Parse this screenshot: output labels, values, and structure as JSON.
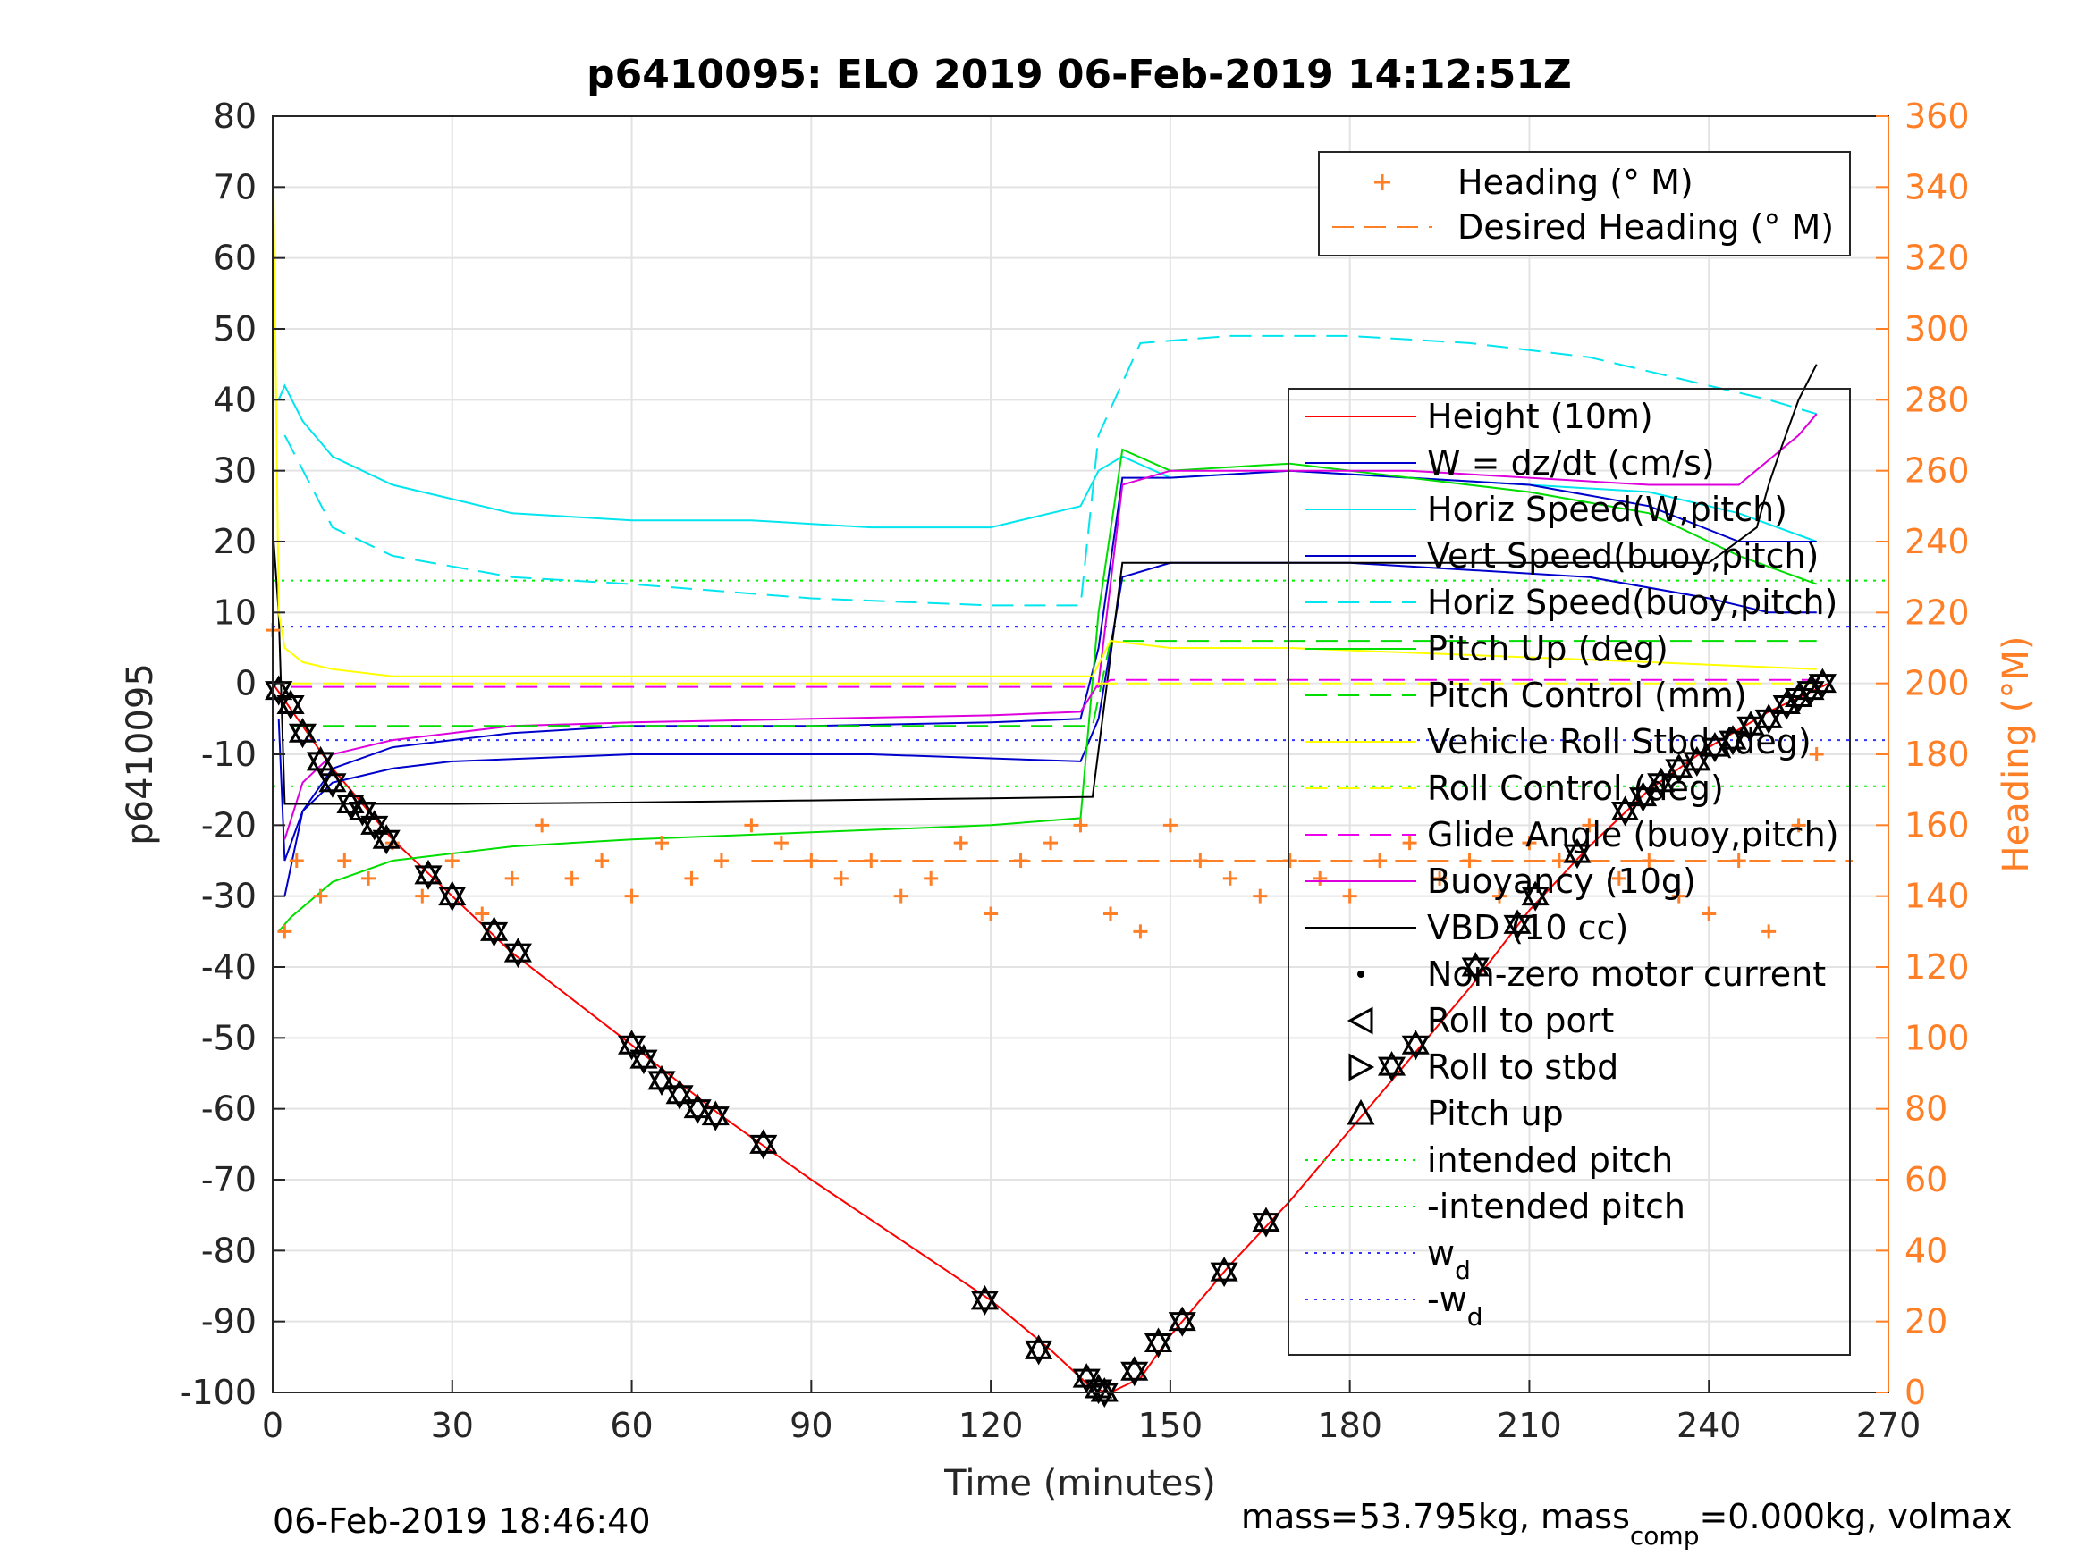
{
  "chart_data": {
    "type": "line",
    "title": "p6410095: ELO 2019 06-Feb-2019 14:12:51Z",
    "xlabel": "Time (minutes)",
    "ylabel_left": "p6410095",
    "ylabel_right": "Heading (°M)",
    "xlim": [
      0,
      270
    ],
    "ylim_left": [
      -100,
      80
    ],
    "ylim_right": [
      0,
      360
    ],
    "x_ticks": [
      "0",
      "30",
      "60",
      "90",
      "120",
      "150",
      "180",
      "210",
      "240",
      "270"
    ],
    "y_ticks_left": [
      "80",
      "70",
      "60",
      "50",
      "40",
      "30",
      "20",
      "10",
      "0",
      "-10",
      "-20",
      "-30",
      "-40",
      "-50",
      "-60",
      "-70",
      "-80",
      "-90",
      "-100"
    ],
    "y_ticks_right": [
      "360",
      "340",
      "320",
      "300",
      "280",
      "260",
      "240",
      "220",
      "200",
      "180",
      "160",
      "140",
      "120",
      "100",
      "80",
      "60",
      "40",
      "20",
      "0"
    ],
    "grid": true,
    "colors": {
      "heading": "#ff7f27",
      "height": "#ff0000",
      "w": "#0000cc",
      "horiz": "#00e5ee",
      "pitch": "#00dd00",
      "roll": "#ffff00",
      "glide": "#ee00ee",
      "buoyancy": "#dd00dd",
      "vbd": "#000000",
      "intended": "#00ee00",
      "wd": "#3333ff"
    },
    "legend_heading": [
      {
        "label": "Heading (° M)",
        "style": "plus",
        "color": "#ff7f27"
      },
      {
        "label": "Desired Heading (° M)",
        "style": "dash",
        "color": "#ff7f27"
      }
    ],
    "legend_main": [
      {
        "label": "Height (10m)",
        "style": "solid",
        "color": "#ff0000"
      },
      {
        "label": "W = dz/dt (cm/s)",
        "style": "solid",
        "color": "#0000cc"
      },
      {
        "label": "Horiz Speed(W,pitch)",
        "style": "solid",
        "color": "#00e5ee"
      },
      {
        "label": "Vert Speed(buoy,pitch)",
        "style": "solid",
        "color": "#0000cc"
      },
      {
        "label": "Horiz Speed(buoy,pitch)",
        "style": "dash",
        "color": "#00e5ee"
      },
      {
        "label": "Pitch Up (deg)",
        "style": "solid",
        "color": "#00dd00"
      },
      {
        "label": "Pitch Control (mm)",
        "style": "dash",
        "color": "#00dd00"
      },
      {
        "label": "Vehicle Roll Stbd (deg)",
        "style": "solid",
        "color": "#ffff00"
      },
      {
        "label": "Roll Control (deg)",
        "style": "dash",
        "color": "#ffff00"
      },
      {
        "label": "Glide Angle (buoy,pitch)",
        "style": "dash",
        "color": "#ee00ee"
      },
      {
        "label": "Buoyancy (10g)",
        "style": "solid",
        "color": "#dd00dd"
      },
      {
        "label": "VBD (10 cc)",
        "style": "solid",
        "color": "#000000"
      },
      {
        "label": "Non-zero motor current",
        "style": "dot",
        "color": "#000000"
      },
      {
        "label": "Roll to port",
        "style": "tri-left",
        "color": "#000000"
      },
      {
        "label": "Roll to stbd",
        "style": "tri-right",
        "color": "#000000"
      },
      {
        "label": "Pitch up",
        "style": "tri-up",
        "color": "#000000"
      },
      {
        "label": "intended pitch",
        "style": "dotted",
        "color": "#00ee00"
      },
      {
        "label": "-intended pitch",
        "style": "dotted",
        "color": "#00ee00"
      },
      {
        "label": "w",
        "sub": "d",
        "style": "dotted",
        "color": "#3333ff"
      },
      {
        "label": "-w",
        "sub": "d",
        "style": "dotted",
        "color": "#3333ff"
      }
    ],
    "series": [
      {
        "name": "Height (10m)",
        "color": "#ff0000",
        "x": [
          0,
          10,
          20,
          30,
          40,
          60,
          75,
          90,
          120,
          130,
          137,
          140,
          145,
          150,
          160,
          170,
          180,
          190,
          200,
          210,
          220,
          230,
          240,
          250,
          260
        ],
        "y": [
          0,
          -12,
          -22,
          -30,
          -38,
          -51,
          -61,
          -70,
          -87,
          -94,
          -99.5,
          -100,
          -98,
          -92,
          -82,
          -73,
          -63,
          -53,
          -43,
          -32,
          -23,
          -15,
          -9,
          -4,
          0
        ]
      },
      {
        "name": "W = dz/dt (cm/s)",
        "color": "#0000cc",
        "x": [
          1,
          2,
          5,
          10,
          20,
          30,
          60,
          100,
          135,
          138,
          142,
          150,
          160,
          180,
          200,
          220,
          240,
          250,
          258
        ],
        "y": [
          -5,
          -25,
          -18,
          -14,
          -12,
          -11,
          -10,
          -10,
          -11,
          -5,
          15,
          17,
          17,
          17,
          16,
          15,
          12,
          10,
          10
        ]
      },
      {
        "name": "Horiz Speed(W,pitch)",
        "color": "#00e5ee",
        "x": [
          1,
          2,
          5,
          10,
          20,
          30,
          40,
          60,
          80,
          100,
          120,
          135,
          138,
          142,
          150,
          170,
          190,
          210,
          230,
          245,
          258
        ],
        "y": [
          40,
          42,
          37,
          32,
          28,
          26,
          24,
          23,
          23,
          22,
          22,
          25,
          30,
          32,
          29,
          30,
          29,
          28,
          27,
          24,
          20
        ]
      },
      {
        "name": "Vert Speed(buoy,pitch)",
        "color": "#0000cc",
        "x": [
          2,
          5,
          10,
          20,
          40,
          60,
          90,
          120,
          135,
          138,
          142,
          150,
          170,
          190,
          210,
          230,
          245,
          258
        ],
        "y": [
          -30,
          -18,
          -12,
          -9,
          -7,
          -6,
          -6,
          -5.5,
          -5,
          5,
          29,
          29,
          30,
          29,
          28,
          25,
          20,
          20
        ]
      },
      {
        "name": "Horiz Speed(buoy,pitch)",
        "color": "#00e5ee",
        "x": [
          2,
          10,
          20,
          40,
          60,
          90,
          120,
          135,
          138,
          145,
          160,
          180,
          200,
          220,
          240,
          250,
          258
        ],
        "y": [
          35,
          22,
          18,
          15,
          14,
          12,
          11,
          11,
          35,
          48,
          49,
          49,
          48,
          46,
          42,
          40,
          38
        ]
      },
      {
        "name": "Pitch Up (deg)",
        "color": "#00dd00",
        "x": [
          1,
          3,
          10,
          20,
          40,
          60,
          90,
          120,
          135,
          138,
          142,
          150,
          170,
          190,
          210,
          230,
          245,
          258
        ],
        "y": [
          -35,
          -33,
          -28,
          -25,
          -23,
          -22,
          -21,
          -20,
          -19,
          10,
          33,
          30,
          31,
          29,
          27,
          24,
          18,
          14
        ]
      },
      {
        "name": "Buoyancy (10g)",
        "color": "#dd00dd",
        "x": [
          2,
          5,
          10,
          20,
          40,
          60,
          90,
          120,
          135,
          138,
          142,
          150,
          170,
          190,
          210,
          230,
          245,
          255,
          258
        ],
        "y": [
          -22,
          -14,
          -10,
          -8,
          -6,
          -5.5,
          -5,
          -4.5,
          -4,
          0,
          28,
          30,
          30,
          30,
          29,
          28,
          28,
          35,
          38
        ]
      },
      {
        "name": "VBD (10 cc)",
        "color": "#000000",
        "x": [
          0,
          1,
          2,
          3,
          30,
          60,
          90,
          120,
          137,
          142,
          143,
          160,
          180,
          200,
          220,
          240,
          248,
          250,
          252,
          255,
          258
        ],
        "y": [
          22,
          10,
          -17,
          -17,
          -17,
          -16.8,
          -16.5,
          -16.2,
          -16,
          17,
          17,
          17,
          17,
          17,
          17,
          17,
          22,
          28,
          33,
          40,
          45
        ]
      },
      {
        "name": "Glide Angle (buoy,pitch)",
        "color": "#ee00ee",
        "x": [
          3,
          138,
          140,
          258
        ],
        "y": [
          -0.5,
          -0.5,
          0.5,
          0.5
        ]
      },
      {
        "name": "Pitch Control (mm)",
        "color": "#00dd00",
        "x": [
          3,
          30,
          60,
          90,
          120,
          137,
          140,
          200,
          258
        ],
        "y": [
          -6,
          -6,
          -6,
          -6,
          -6,
          -6,
          6,
          6,
          6
        ]
      },
      {
        "name": "Vehicle Roll Stbd (deg)",
        "color": "#ffff00",
        "x": [
          0,
          1,
          2,
          5,
          10,
          20,
          40,
          60,
          90,
          120,
          137,
          140,
          150,
          170,
          200,
          230,
          258
        ],
        "y": [
          80,
          10,
          5,
          3,
          2,
          1,
          1,
          1,
          1,
          1,
          1,
          6,
          5,
          5,
          4,
          3,
          2
        ]
      },
      {
        "name": "Roll Control (deg)",
        "color": "#ffff00",
        "x": [
          3,
          137,
          140,
          258
        ],
        "y": [
          0,
          0,
          0,
          0
        ]
      }
    ],
    "markers": [
      {
        "name": "Roll markers",
        "x": [
          1,
          3,
          5,
          8,
          10,
          13,
          15,
          17,
          19,
          26,
          30,
          37,
          41,
          60,
          62,
          65,
          68,
          71,
          74,
          82,
          119,
          128,
          136,
          138,
          139,
          144,
          148,
          152,
          159,
          166,
          187,
          191,
          201,
          208,
          211,
          218,
          226,
          229,
          232,
          235,
          238,
          241,
          244,
          247,
          250,
          253,
          255,
          257,
          259
        ],
        "y": [
          -1,
          -3,
          -7,
          -11,
          -14,
          -17,
          -18,
          -20,
          -22,
          -27,
          -30,
          -35,
          -38,
          -51,
          -53,
          -56,
          -58,
          -60,
          -61,
          -65,
          -87,
          -94,
          -98,
          -99.5,
          -100,
          -97,
          -93,
          -90,
          -83,
          -76,
          -54,
          -51,
          -40,
          -34,
          -30,
          -24,
          -18,
          -16,
          -14,
          -12,
          -11,
          -9,
          -8,
          -6,
          -5,
          -3,
          -2,
          -1,
          0
        ]
      }
    ],
    "heading": {
      "desired": 150,
      "x": [
        0,
        2,
        4,
        8,
        12,
        16,
        20,
        25,
        30,
        35,
        40,
        45,
        50,
        55,
        60,
        65,
        70,
        75,
        80,
        85,
        90,
        95,
        100,
        105,
        110,
        115,
        120,
        125,
        130,
        135,
        140,
        145,
        150,
        155,
        160,
        165,
        170,
        175,
        180,
        185,
        190,
        195,
        200,
        205,
        210,
        215,
        220,
        225,
        230,
        235,
        240,
        245,
        250,
        255,
        258
      ],
      "y": [
        215,
        130,
        150,
        140,
        150,
        145,
        155,
        140,
        150,
        135,
        145,
        160,
        145,
        150,
        140,
        155,
        145,
        150,
        160,
        155,
        150,
        145,
        150,
        140,
        145,
        155,
        135,
        150,
        155,
        160,
        135,
        130,
        160,
        150,
        145,
        140,
        150,
        145,
        140,
        150,
        155,
        145,
        150,
        140,
        155,
        150,
        160,
        145,
        150,
        140,
        135,
        150,
        130,
        160,
        180
      ]
    },
    "reference_lines": [
      {
        "name": "intended pitch",
        "y": 14.5,
        "color": "#00ee00"
      },
      {
        "name": "-intended pitch",
        "y": -14.5,
        "color": "#00ee00"
      },
      {
        "name": "wd",
        "y": 8,
        "color": "#3333ff"
      },
      {
        "name": "-wd",
        "y": -8,
        "color": "#3333ff"
      }
    ]
  },
  "footer": {
    "timestamp": "06-Feb-2019 18:46:40",
    "mass_text": "mass=53.795kg, mass",
    "mass_sub": "comp",
    "mass_rest": "=0.000kg, volmax"
  }
}
